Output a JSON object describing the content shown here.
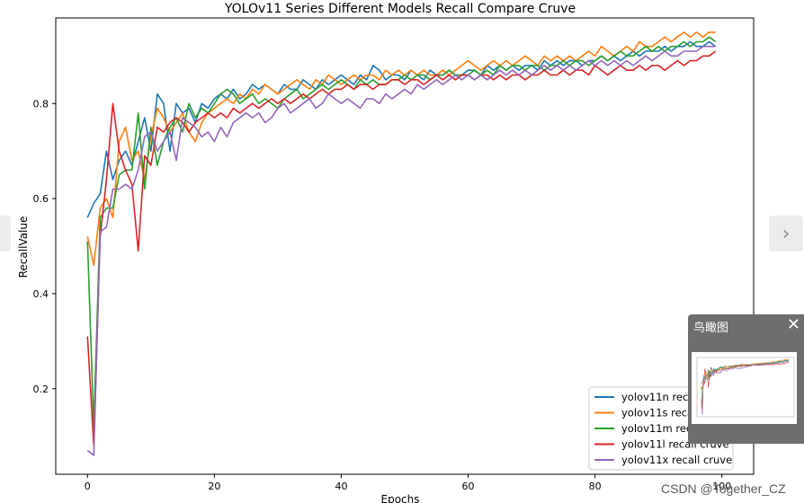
{
  "chart_data": {
    "type": "line",
    "title": "YOLOv11 Series Different Models Recall Compare Cruve",
    "xlabel": "Epochs",
    "ylabel": "RecallValue",
    "xlim": [
      -5,
      105
    ],
    "ylim": [
      0.02,
      0.98
    ],
    "xticks": [
      0,
      20,
      40,
      60,
      80,
      100
    ],
    "yticks": [
      0.2,
      0.4,
      0.6,
      0.8
    ],
    "grid": false,
    "legend_position": "lower-right",
    "x": [
      0,
      1,
      2,
      3,
      4,
      5,
      6,
      7,
      8,
      9,
      10,
      11,
      12,
      13,
      14,
      15,
      16,
      17,
      18,
      19,
      20,
      21,
      22,
      23,
      24,
      25,
      26,
      27,
      28,
      29,
      30,
      31,
      32,
      33,
      34,
      35,
      36,
      37,
      38,
      39,
      40,
      41,
      42,
      43,
      44,
      45,
      46,
      47,
      48,
      49,
      50,
      51,
      52,
      53,
      54,
      55,
      56,
      57,
      58,
      59,
      60,
      61,
      62,
      63,
      64,
      65,
      66,
      67,
      68,
      69,
      70,
      71,
      72,
      73,
      74,
      75,
      76,
      77,
      78,
      79,
      80,
      81,
      82,
      83,
      84,
      85,
      86,
      87,
      88,
      89,
      90,
      91,
      92,
      93,
      94,
      95,
      96,
      97,
      98,
      99
    ],
    "series": [
      {
        "name": "yolov11n recall cruve",
        "color": "#1f77b4",
        "values": [
          0.56,
          0.59,
          0.61,
          0.7,
          0.64,
          0.68,
          0.7,
          0.67,
          0.72,
          0.77,
          0.7,
          0.82,
          0.8,
          0.7,
          0.8,
          0.78,
          0.79,
          0.76,
          0.8,
          0.79,
          0.81,
          0.82,
          0.81,
          0.83,
          0.81,
          0.82,
          0.84,
          0.83,
          0.84,
          0.83,
          0.82,
          0.84,
          0.83,
          0.83,
          0.85,
          0.84,
          0.83,
          0.85,
          0.84,
          0.85,
          0.86,
          0.85,
          0.84,
          0.86,
          0.85,
          0.88,
          0.87,
          0.85,
          0.86,
          0.86,
          0.85,
          0.87,
          0.86,
          0.85,
          0.87,
          0.86,
          0.86,
          0.87,
          0.86,
          0.86,
          0.87,
          0.87,
          0.86,
          0.88,
          0.87,
          0.88,
          0.87,
          0.88,
          0.87,
          0.88,
          0.88,
          0.87,
          0.89,
          0.88,
          0.89,
          0.88,
          0.89,
          0.89,
          0.88,
          0.89,
          0.89,
          0.9,
          0.89,
          0.9,
          0.89,
          0.9,
          0.91,
          0.9,
          0.91,
          0.91,
          0.91,
          0.92,
          0.91,
          0.92,
          0.92,
          0.93,
          0.92,
          0.92,
          0.93,
          0.92
        ]
      },
      {
        "name": "yolov11s recall cruve",
        "color": "#ff7f0e",
        "values": [
          0.52,
          0.46,
          0.58,
          0.6,
          0.56,
          0.72,
          0.75,
          0.68,
          0.7,
          0.64,
          0.73,
          0.79,
          0.77,
          0.74,
          0.76,
          0.78,
          0.74,
          0.72,
          0.76,
          0.78,
          0.79,
          0.8,
          0.81,
          0.8,
          0.82,
          0.81,
          0.83,
          0.82,
          0.84,
          0.83,
          0.82,
          0.83,
          0.84,
          0.85,
          0.84,
          0.83,
          0.85,
          0.84,
          0.86,
          0.85,
          0.84,
          0.85,
          0.86,
          0.85,
          0.86,
          0.86,
          0.85,
          0.87,
          0.86,
          0.87,
          0.86,
          0.87,
          0.86,
          0.87,
          0.86,
          0.86,
          0.87,
          0.86,
          0.87,
          0.88,
          0.89,
          0.88,
          0.87,
          0.88,
          0.89,
          0.88,
          0.89,
          0.88,
          0.89,
          0.9,
          0.89,
          0.88,
          0.9,
          0.89,
          0.9,
          0.89,
          0.9,
          0.89,
          0.9,
          0.91,
          0.9,
          0.92,
          0.91,
          0.9,
          0.91,
          0.92,
          0.91,
          0.93,
          0.92,
          0.92,
          0.93,
          0.94,
          0.93,
          0.94,
          0.95,
          0.94,
          0.95,
          0.94,
          0.95,
          0.95
        ]
      },
      {
        "name": "yolov11m recall cruve",
        "color": "#2ca02c",
        "values": [
          0.51,
          0.12,
          0.56,
          0.58,
          0.58,
          0.65,
          0.66,
          0.66,
          0.78,
          0.62,
          0.75,
          0.67,
          0.72,
          0.75,
          0.77,
          0.74,
          0.8,
          0.77,
          0.79,
          0.78,
          0.8,
          0.82,
          0.83,
          0.82,
          0.8,
          0.81,
          0.82,
          0.8,
          0.81,
          0.8,
          0.79,
          0.81,
          0.82,
          0.83,
          0.81,
          0.82,
          0.83,
          0.84,
          0.83,
          0.84,
          0.85,
          0.84,
          0.83,
          0.85,
          0.84,
          0.85,
          0.84,
          0.84,
          0.85,
          0.85,
          0.86,
          0.85,
          0.86,
          0.86,
          0.85,
          0.86,
          0.86,
          0.87,
          0.86,
          0.86,
          0.86,
          0.87,
          0.86,
          0.87,
          0.86,
          0.88,
          0.87,
          0.88,
          0.88,
          0.87,
          0.88,
          0.88,
          0.87,
          0.88,
          0.88,
          0.89,
          0.88,
          0.89,
          0.89,
          0.88,
          0.89,
          0.9,
          0.89,
          0.9,
          0.91,
          0.9,
          0.9,
          0.91,
          0.92,
          0.91,
          0.92,
          0.91,
          0.92,
          0.92,
          0.93,
          0.92,
          0.93,
          0.93,
          0.94,
          0.93
        ]
      },
      {
        "name": "yolov11l recall cruve",
        "color": "#d62728",
        "values": [
          0.31,
          0.08,
          0.52,
          0.64,
          0.8,
          0.7,
          0.66,
          0.63,
          0.49,
          0.69,
          0.67,
          0.75,
          0.74,
          0.76,
          0.77,
          0.76,
          0.74,
          0.76,
          0.77,
          0.78,
          0.77,
          0.78,
          0.77,
          0.79,
          0.78,
          0.79,
          0.8,
          0.79,
          0.8,
          0.81,
          0.8,
          0.81,
          0.8,
          0.81,
          0.82,
          0.81,
          0.82,
          0.83,
          0.82,
          0.83,
          0.83,
          0.84,
          0.83,
          0.84,
          0.84,
          0.83,
          0.84,
          0.84,
          0.85,
          0.85,
          0.84,
          0.85,
          0.85,
          0.84,
          0.85,
          0.86,
          0.85,
          0.86,
          0.85,
          0.86,
          0.86,
          0.85,
          0.86,
          0.86,
          0.85,
          0.86,
          0.85,
          0.86,
          0.86,
          0.85,
          0.86,
          0.86,
          0.87,
          0.86,
          0.86,
          0.87,
          0.86,
          0.87,
          0.87,
          0.86,
          0.88,
          0.87,
          0.86,
          0.87,
          0.88,
          0.87,
          0.87,
          0.88,
          0.87,
          0.88,
          0.88,
          0.87,
          0.88,
          0.89,
          0.88,
          0.89,
          0.89,
          0.9,
          0.9,
          0.91
        ]
      },
      {
        "name": "yolov11x recall cruve",
        "color": "#9467bd",
        "values": [
          0.07,
          0.06,
          0.53,
          0.54,
          0.62,
          0.62,
          0.63,
          0.62,
          0.66,
          0.73,
          0.74,
          0.7,
          0.72,
          0.74,
          0.68,
          0.77,
          0.76,
          0.75,
          0.73,
          0.74,
          0.72,
          0.75,
          0.73,
          0.76,
          0.77,
          0.78,
          0.77,
          0.78,
          0.76,
          0.77,
          0.79,
          0.8,
          0.78,
          0.79,
          0.8,
          0.81,
          0.79,
          0.8,
          0.82,
          0.81,
          0.8,
          0.81,
          0.8,
          0.79,
          0.81,
          0.81,
          0.8,
          0.82,
          0.81,
          0.82,
          0.83,
          0.82,
          0.84,
          0.83,
          0.84,
          0.85,
          0.84,
          0.85,
          0.86,
          0.85,
          0.86,
          0.85,
          0.86,
          0.85,
          0.86,
          0.87,
          0.86,
          0.87,
          0.86,
          0.87,
          0.86,
          0.87,
          0.88,
          0.87,
          0.88,
          0.87,
          0.88,
          0.87,
          0.88,
          0.89,
          0.88,
          0.89,
          0.88,
          0.89,
          0.88,
          0.89,
          0.88,
          0.89,
          0.9,
          0.89,
          0.9,
          0.91,
          0.9,
          0.9,
          0.91,
          0.91,
          0.91,
          0.92,
          0.92,
          0.92
        ]
      }
    ]
  },
  "overlay": {
    "birdview_title": "鸟瞰图",
    "close_glyph": "✕",
    "watermark": "CSDN @Together_CZ"
  },
  "nav": {
    "prev_icon": "chevron-left-icon",
    "next_icon": "chevron-right-icon",
    "prev_glyph": "‹",
    "next_glyph": "›"
  }
}
